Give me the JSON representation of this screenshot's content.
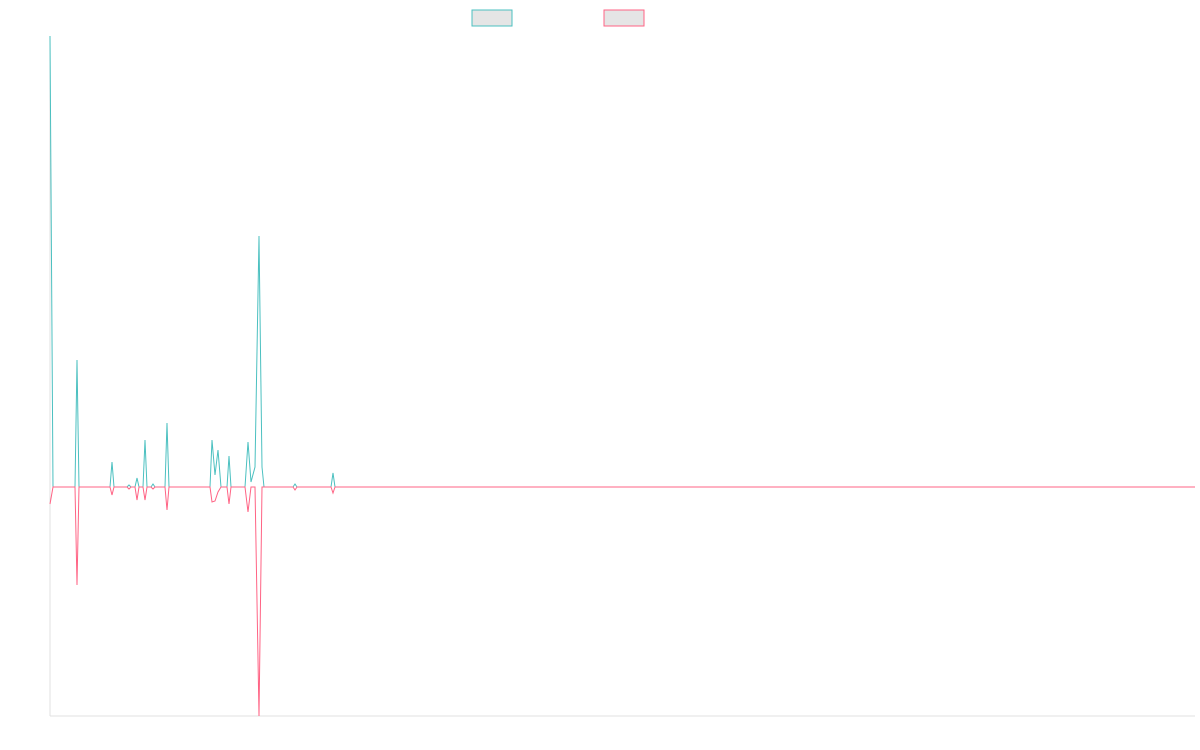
{
  "chart_data": {
    "type": "line",
    "x": [
      0,
      3,
      25,
      27,
      29,
      60,
      62,
      64,
      77,
      79,
      81,
      85,
      87,
      89,
      93,
      95,
      97,
      101,
      103,
      105,
      115,
      117,
      119,
      160,
      162,
      165,
      168,
      171,
      177,
      179,
      181,
      195,
      198,
      201,
      205,
      209,
      212,
      214,
      243,
      245,
      247,
      281,
      283,
      285,
      1145
    ],
    "series": [
      {
        "color": "#4bc0c0",
        "values": [
          451,
          0,
          0,
          127,
          0,
          0,
          25,
          0,
          0,
          2,
          0,
          0,
          9,
          0,
          0,
          47,
          0,
          0,
          3,
          0,
          0,
          64,
          0,
          0,
          47,
          12,
          37,
          0,
          0,
          31,
          0,
          0,
          45,
          5,
          20,
          251,
          20,
          0,
          0,
          3,
          0,
          0,
          14,
          0,
          0
        ]
      },
      {
        "color": "#ff6384",
        "values": [
          -17,
          0,
          0,
          -98,
          0,
          0,
          -8,
          0,
          0,
          -2,
          0,
          0,
          -13,
          0,
          0,
          -13,
          0,
          0,
          -2,
          0,
          0,
          -23,
          0,
          0,
          -15,
          -14,
          -5,
          0,
          0,
          -17,
          0,
          0,
          -25,
          0,
          0,
          -229,
          0,
          0,
          0,
          -3,
          0,
          0,
          -6,
          0,
          0
        ]
      }
    ],
    "xlim": [
      0,
      1145
    ],
    "ylim": [
      -229,
      451
    ]
  }
}
